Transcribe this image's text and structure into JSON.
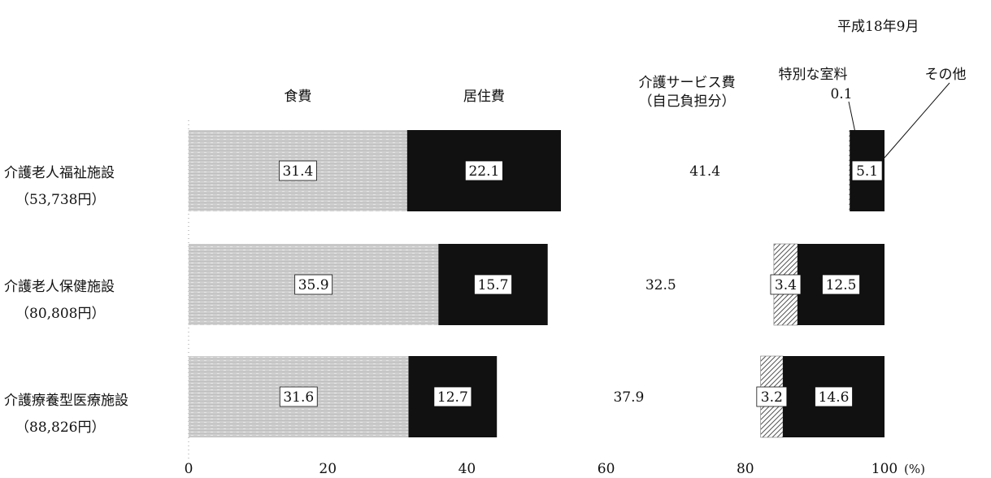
{
  "date_label": "平成18年9月",
  "chart_data": {
    "type": "bar",
    "orientation": "horizontal",
    "stacked": true,
    "categories": [
      {
        "name": "介護老人福祉施設",
        "amount": "（53,738円）"
      },
      {
        "name": "介護老人保健施設",
        "amount": "（80,808円）"
      },
      {
        "name": "介護療養型医療施設",
        "amount": "（88,826円）"
      }
    ],
    "series": [
      {
        "name": "食費",
        "values": [
          31.4,
          35.9,
          31.6
        ],
        "labels": [
          "31.4",
          "35.9",
          "31.6"
        ],
        "fill": "#d0d0d0"
      },
      {
        "name": "居住費",
        "values": [
          22.1,
          15.7,
          12.7
        ],
        "labels": [
          "22.1",
          "15.7",
          "12.7"
        ],
        "fill": "#111111"
      },
      {
        "name": "介護サービス費\n（自己負担分）",
        "values": [
          41.4,
          32.5,
          37.9
        ],
        "labels": [
          "41.4",
          "32.5",
          "37.9"
        ],
        "fill": "#ffffff"
      },
      {
        "name": "特別な室料",
        "values": [
          0.1,
          3.4,
          3.2
        ],
        "labels": [
          "0.1",
          "3.4",
          "3.2"
        ],
        "fill": "hatch"
      },
      {
        "name": "その他",
        "values": [
          5.1,
          12.5,
          14.6
        ],
        "labels": [
          "5.1",
          "12.5",
          "14.6"
        ],
        "fill": "#111111"
      }
    ],
    "xlim": [
      0,
      100
    ],
    "xticks": [
      "0",
      "20",
      "40",
      "60",
      "80",
      "100"
    ],
    "xunit": "(%)"
  }
}
